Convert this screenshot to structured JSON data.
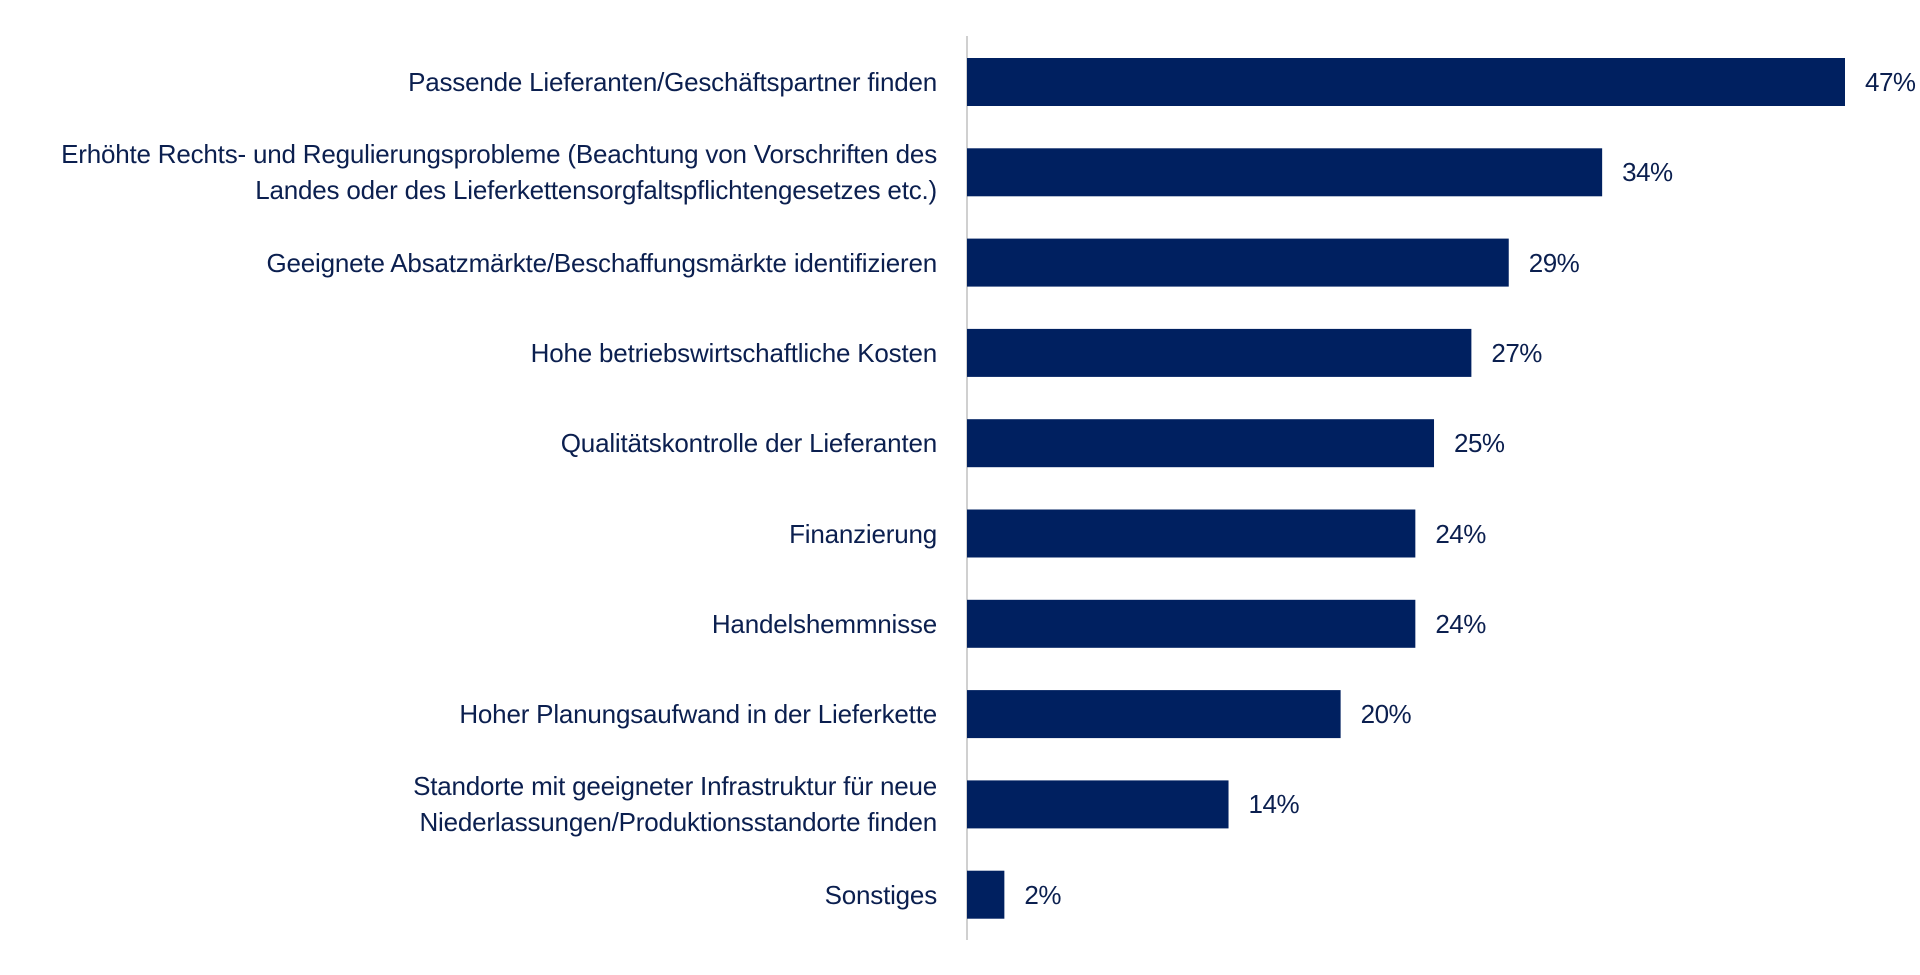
{
  "chart_data": {
    "type": "bar",
    "orientation": "horizontal",
    "title": "",
    "xlabel": "",
    "ylabel": "",
    "xlim": [
      0,
      47
    ],
    "grid": false,
    "legend": "none",
    "bar_color": "#002060",
    "axis_color": "#d0d0d0",
    "text_color": "#0b1f4f",
    "categories": [
      [
        "Passende Lieferanten/Geschäftspartner finden"
      ],
      [
        "Erhöhte Rechts- und Regulierungsprobleme (Beachtung von Vorschriften des",
        "Landes oder des Lieferkettensorgfaltspflichtengesetzes etc.)"
      ],
      [
        "Geeignete Absatzmärkte/Beschaffungsmärkte identifizieren"
      ],
      [
        "Hohe betriebswirtschaftliche Kosten"
      ],
      [
        "Qualitätskontrolle der Lieferanten"
      ],
      [
        "Finanzierung"
      ],
      [
        "Handelshemmnisse"
      ],
      [
        "Hoher Planungsaufwand in der Lieferkette"
      ],
      [
        "Standorte mit geeigneter Infrastruktur für neue",
        "Niederlassungen/Produktionsstandorte finden"
      ],
      [
        "Sonstiges"
      ]
    ],
    "values": [
      47,
      34,
      29,
      27,
      25,
      24,
      24,
      20,
      14,
      2
    ],
    "value_labels": [
      "47%",
      "34%",
      "29%",
      "27%",
      "25%",
      "24%",
      "24%",
      "20%",
      "14%",
      "2%"
    ]
  }
}
